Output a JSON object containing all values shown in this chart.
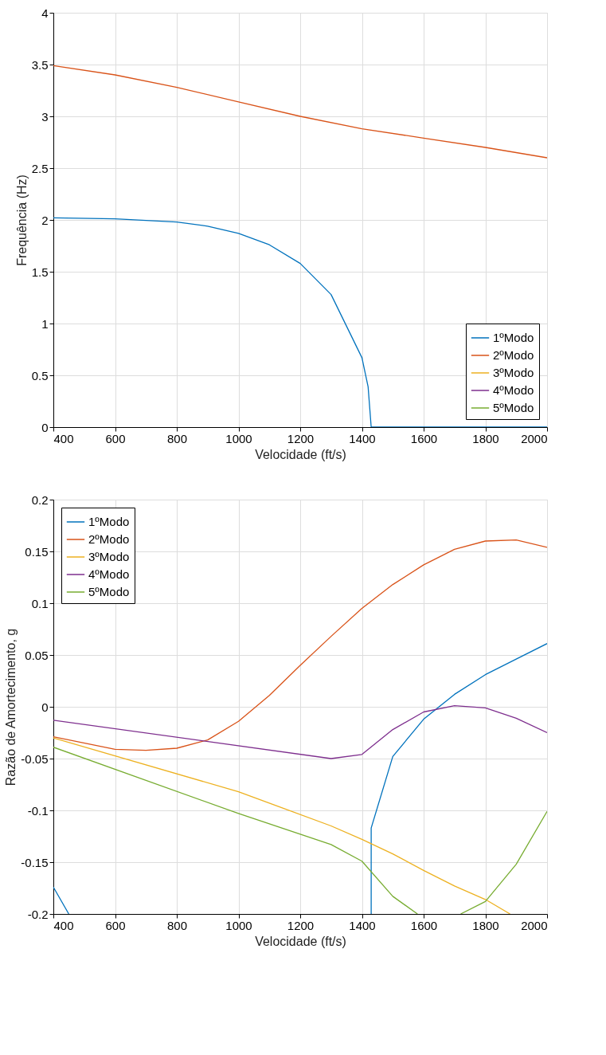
{
  "chart_data": [
    {
      "type": "line",
      "xlabel": "Velocidade (ft/s)",
      "ylabel": "Frequência (Hz)",
      "xlim": [
        400,
        2000
      ],
      "ylim": [
        0,
        4
      ],
      "xticks": [
        400,
        600,
        800,
        1000,
        1200,
        1400,
        1600,
        1800,
        2000
      ],
      "yticks": [
        0,
        0.5,
        1,
        1.5,
        2,
        2.5,
        3,
        3.5,
        4
      ],
      "grid": true,
      "legend": "bottom right",
      "line_style": "solid",
      "marker": "none",
      "series": [
        {
          "name": "1ºModo",
          "color": "#0072bd",
          "x": [
            400,
            600,
            800,
            900,
            1000,
            1100,
            1200,
            1300,
            1400,
            1420,
            1430,
            2000
          ],
          "values": [
            2.02,
            2.01,
            1.98,
            1.94,
            1.87,
            1.76,
            1.58,
            1.28,
            0.67,
            0.39,
            0,
            0
          ]
        },
        {
          "name": "2ºModo",
          "color": "#d95319",
          "x": [
            400,
            600,
            800,
            1000,
            1200,
            1400,
            1600,
            1800,
            2000
          ],
          "values": [
            3.49,
            3.4,
            3.28,
            3.14,
            3.0,
            2.88,
            2.79,
            2.7,
            2.6
          ]
        },
        {
          "name": "3ºModo",
          "color": "#edb120"
        },
        {
          "name": "4ºModo",
          "color": "#7e2f8e"
        },
        {
          "name": "5ºModo",
          "color": "#77ac30"
        }
      ]
    },
    {
      "type": "line",
      "xlabel": "Velocidade (ft/s)",
      "ylabel": "Razão de Amortecimento, g",
      "xlim": [
        400,
        2000
      ],
      "ylim": [
        -0.2,
        0.2
      ],
      "xticks": [
        400,
        600,
        800,
        1000,
        1200,
        1400,
        1600,
        1800,
        2000
      ],
      "yticks": [
        -0.2,
        -0.15,
        -0.1,
        -0.05,
        0,
        0.05,
        0.1,
        0.15,
        0.2
      ],
      "grid": true,
      "legend": "top left",
      "line_style": "solid",
      "marker": "none",
      "series": [
        {
          "name": "1ºModo",
          "color": "#0072bd",
          "x": [
            400,
            450,
            900,
            1430,
            1430,
            1500,
            1600,
            1700,
            1800,
            1900,
            2000
          ],
          "values": [
            -0.174,
            -0.2,
            null,
            -0.2,
            -0.117,
            -0.048,
            -0.012,
            0.012,
            0.031,
            0.046,
            0.061
          ]
        },
        {
          "name": "2ºModo",
          "color": "#d95319",
          "x": [
            400,
            600,
            700,
            800,
            900,
            1000,
            1100,
            1200,
            1300,
            1400,
            1500,
            1600,
            1700,
            1800,
            1900,
            2000
          ],
          "values": [
            -0.029,
            -0.041,
            -0.042,
            -0.04,
            -0.032,
            -0.014,
            0.011,
            0.04,
            0.068,
            0.095,
            0.118,
            0.137,
            0.152,
            0.16,
            0.161,
            0.154
          ]
        },
        {
          "name": "3ºModo",
          "color": "#edb120",
          "x": [
            400,
            1000,
            1300,
            1400,
            1500,
            1600,
            1700,
            1800,
            1880
          ],
          "values": [
            -0.03,
            -0.082,
            -0.115,
            -0.128,
            -0.142,
            -0.158,
            -0.173,
            -0.186,
            -0.2
          ]
        },
        {
          "name": "4ºModo",
          "color": "#7e2f8e",
          "x": [
            400,
            1300,
            1400,
            1500,
            1600,
            1700,
            1800,
            1900,
            2000
          ],
          "values": [
            -0.013,
            -0.05,
            -0.046,
            -0.022,
            -0.005,
            0.001,
            -0.001,
            -0.011,
            -0.025
          ]
        },
        {
          "name": "5ºModo",
          "color": "#77ac30",
          "x": [
            400,
            1000,
            1300,
            1400,
            1500,
            1580,
            1650,
            1720,
            1800,
            1900,
            2000
          ],
          "values": [
            -0.039,
            -0.103,
            -0.133,
            -0.149,
            -0.183,
            -0.2,
            null,
            -0.2,
            -0.188,
            -0.152,
            -0.101
          ]
        }
      ]
    }
  ]
}
